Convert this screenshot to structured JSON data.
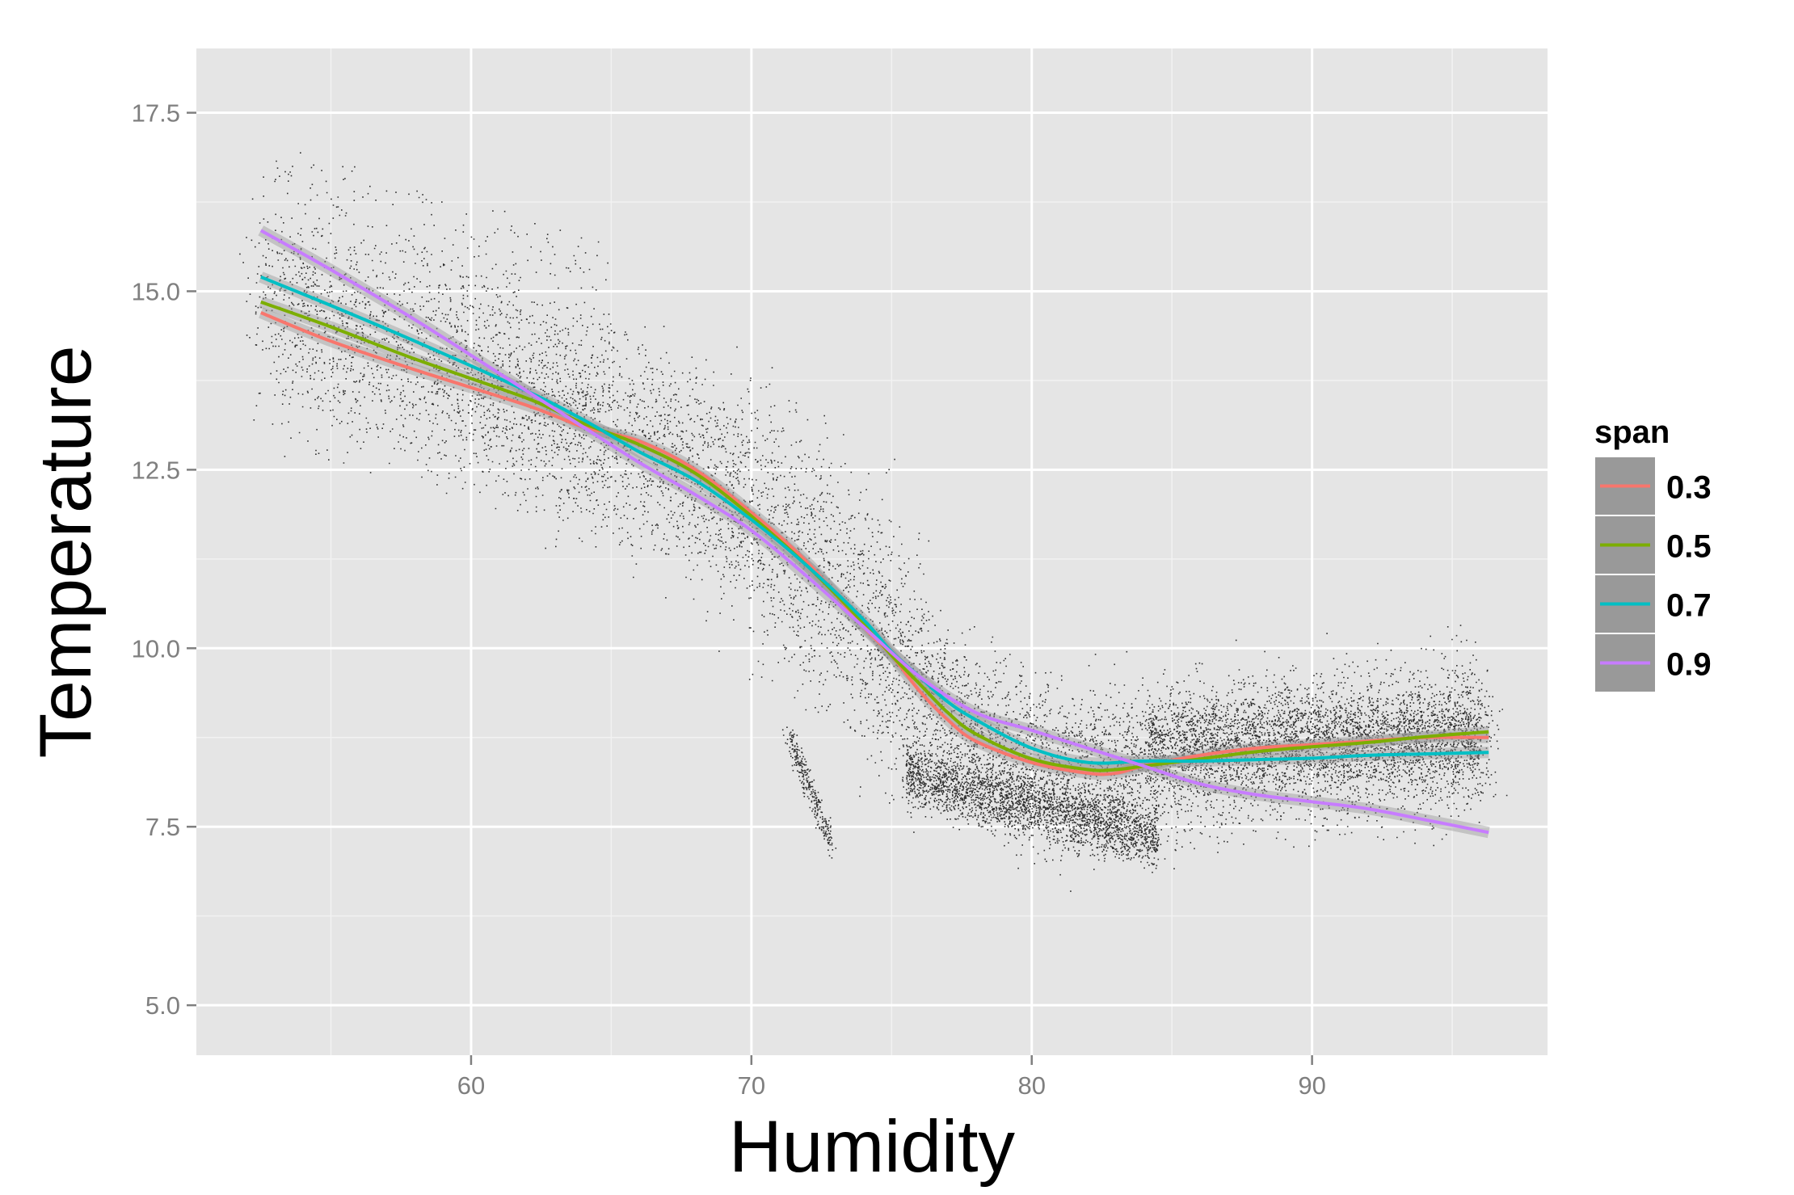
{
  "chart_data": {
    "type": "scatter",
    "xlabel": "Humidity",
    "ylabel": "Temperature",
    "xlim": [
      50.2,
      98.4
    ],
    "ylim": [
      4.3,
      18.4
    ],
    "x_ticks": [
      60,
      70,
      80,
      90
    ],
    "x_tick_labels": [
      "60",
      "70",
      "80",
      "90"
    ],
    "y_ticks": [
      5.0,
      7.5,
      10.0,
      12.5,
      15.0,
      17.5
    ],
    "y_tick_labels": [
      "5.0",
      "7.5",
      "10.0",
      "12.5",
      "15.0",
      "17.5"
    ],
    "grid": true,
    "legend": {
      "title": "span",
      "placement": "right"
    },
    "points_note": "dense cloud of small black points (humidity vs temperature)",
    "series": [
      {
        "name": "0.3",
        "color": "#F8766D",
        "x": [
          52.5,
          55,
          58,
          62,
          64,
          66,
          68,
          70,
          72,
          74,
          75,
          76,
          77,
          78,
          80,
          82,
          83,
          84,
          86,
          88,
          90,
          92,
          94,
          96.3
        ],
        "y": [
          14.7,
          14.3,
          13.9,
          13.4,
          13.1,
          12.9,
          12.5,
          11.9,
          11.2,
          10.3,
          9.9,
          9.4,
          9.0,
          8.7,
          8.4,
          8.25,
          8.25,
          8.35,
          8.5,
          8.6,
          8.65,
          8.7,
          8.75,
          8.75
        ]
      },
      {
        "name": "0.5",
        "color": "#7CAE00",
        "x": [
          52.5,
          55,
          58,
          62,
          64,
          66,
          68,
          70,
          72,
          74,
          75,
          76,
          77,
          78,
          80,
          82,
          83,
          84,
          86,
          88,
          90,
          92,
          94,
          96.3
        ],
        "y": [
          14.85,
          14.5,
          14.05,
          13.5,
          13.15,
          12.85,
          12.45,
          11.85,
          11.15,
          10.35,
          9.9,
          9.5,
          9.1,
          8.8,
          8.45,
          8.3,
          8.3,
          8.35,
          8.45,
          8.55,
          8.62,
          8.68,
          8.76,
          8.83
        ]
      },
      {
        "name": "0.7",
        "color": "#00BFC4",
        "x": [
          52.5,
          55,
          58,
          62,
          64,
          66,
          68,
          70,
          72,
          74,
          75,
          76,
          77,
          78,
          80,
          82,
          84,
          86,
          88,
          90,
          92,
          94,
          96.3
        ],
        "y": [
          15.2,
          14.8,
          14.3,
          13.6,
          13.2,
          12.75,
          12.35,
          11.8,
          11.15,
          10.4,
          9.95,
          9.6,
          9.25,
          9.0,
          8.6,
          8.4,
          8.42,
          8.42,
          8.44,
          8.46,
          8.5,
          8.52,
          8.54
        ]
      },
      {
        "name": "0.9",
        "color": "#C77CFF",
        "x": [
          52.5,
          55,
          58,
          62,
          64,
          66,
          68,
          70,
          72,
          74,
          76,
          78,
          80,
          82,
          84,
          86,
          88,
          90,
          92,
          94,
          96.3
        ],
        "y": [
          15.85,
          15.3,
          14.6,
          13.6,
          13.1,
          12.6,
          12.15,
          11.65,
          11.0,
          10.3,
          9.6,
          9.1,
          8.85,
          8.6,
          8.35,
          8.1,
          7.95,
          7.85,
          7.75,
          7.6,
          7.42
        ]
      }
    ]
  }
}
